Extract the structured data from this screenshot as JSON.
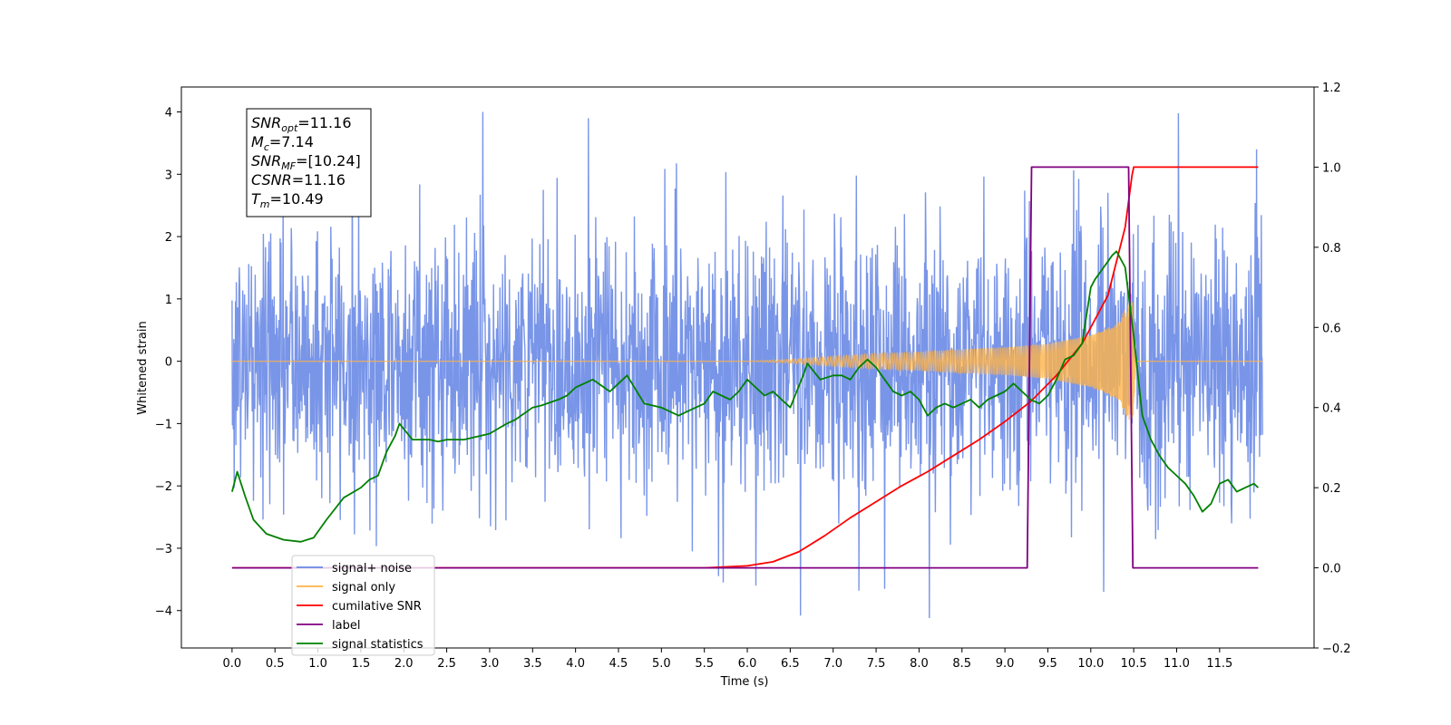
{
  "chart_data": {
    "type": "line",
    "xlabel": "Time (s)",
    "ylabel": "Whitened strain",
    "xlim": [
      -0.59,
      12.6
    ],
    "ylim": [
      -4.6,
      4.4
    ],
    "y2lim": [
      -0.2,
      1.2
    ],
    "x_ticks": [
      0.0,
      0.5,
      1.0,
      1.5,
      2.0,
      2.5,
      3.0,
      3.5,
      4.0,
      4.5,
      5.0,
      5.5,
      6.0,
      6.5,
      7.0,
      7.5,
      8.0,
      8.5,
      9.0,
      9.5,
      10.0,
      10.5,
      11.0,
      11.5
    ],
    "x_tick_labels": [
      "0.0",
      "0.5",
      "1.0",
      "1.5",
      "2.0",
      "2.5",
      "3.0",
      "3.5",
      "4.0",
      "4.5",
      "5.0",
      "5.5",
      "6.0",
      "6.5",
      "7.0",
      "7.5",
      "8.0",
      "8.5",
      "9.0",
      "9.5",
      "10.0",
      "10.5",
      "11.0",
      "11.5"
    ],
    "y_ticks": [
      -4,
      -3,
      -2,
      -1,
      0,
      1,
      2,
      3,
      4
    ],
    "y_tick_labels": [
      "−4",
      "−3",
      "−2",
      "−1",
      "0",
      "1",
      "2",
      "3",
      "4"
    ],
    "y2_ticks": [
      -0.2,
      0.0,
      0.2,
      0.4,
      0.6,
      0.8,
      1.0,
      1.2
    ],
    "y2_tick_labels": [
      "−0.2",
      "0.0",
      "0.2",
      "0.4",
      "0.6",
      "0.8",
      "1.0",
      "1.2"
    ],
    "grid": false,
    "legend_position": "lower-left",
    "annotation": [
      {
        "sym": "SNR",
        "sub": "opt",
        "value": "=11.16"
      },
      {
        "sym": "M",
        "sub": "c",
        "value": "=7.14"
      },
      {
        "sym": "SNR",
        "sub": "MF",
        "value": "=[10.24]"
      },
      {
        "sym": "CSNR",
        "sub": "",
        "value": "=11.16"
      },
      {
        "sym": "T",
        "sub": "m",
        "value": "=10.49"
      }
    ],
    "series": [
      {
        "name": "signal+ noise",
        "color": "#6a89e6",
        "axis": "left",
        "x_range": [
          0.0,
          12.0
        ],
        "std": 1.05,
        "y_min": -4.1,
        "y_max": 4.0,
        "notable_peaks": [
          {
            "x": 2.92,
            "y": 4.0
          },
          {
            "x": 4.15,
            "y": 3.9
          },
          {
            "x": 11.02,
            "y": 3.98
          },
          {
            "x": 11.93,
            "y": 3.4
          },
          {
            "x": 6.62,
            "y": -4.08
          },
          {
            "x": 8.12,
            "y": -4.12
          },
          {
            "x": 10.15,
            "y": -3.7
          },
          {
            "x": 5.72,
            "y": -3.55
          },
          {
            "x": 6.1,
            "y": -3.6
          },
          {
            "x": 7.3,
            "y": -3.68
          },
          {
            "x": 7.6,
            "y": -3.65
          }
        ]
      },
      {
        "name": "signal only",
        "color": "#ffb347",
        "axis": "left",
        "x_range": [
          0.0,
          12.0
        ],
        "t_merger": 10.49,
        "envelope": [
          [
            0.0,
            0.0
          ],
          [
            6.0,
            0.0
          ],
          [
            6.5,
            0.03
          ],
          [
            7.0,
            0.08
          ],
          [
            7.5,
            0.12
          ],
          [
            8.0,
            0.15
          ],
          [
            8.5,
            0.19
          ],
          [
            9.0,
            0.22
          ],
          [
            9.5,
            0.28
          ],
          [
            10.0,
            0.42
          ],
          [
            10.3,
            0.6
          ],
          [
            10.45,
            0.95
          ],
          [
            10.49,
            0.95
          ],
          [
            10.53,
            0.0
          ],
          [
            12.0,
            0.0
          ]
        ]
      },
      {
        "name": "cumilative SNR",
        "color": "#ff0000",
        "axis": "right",
        "x": [
          0.0,
          5.5,
          6.0,
          6.3,
          6.6,
          6.9,
          7.2,
          7.5,
          7.8,
          8.1,
          8.4,
          8.7,
          9.0,
          9.3,
          9.6,
          9.9,
          10.2,
          10.4,
          10.48,
          10.5,
          11.95
        ],
        "values": [
          0.0,
          0.0,
          0.005,
          0.015,
          0.04,
          0.08,
          0.125,
          0.165,
          0.205,
          0.24,
          0.28,
          0.32,
          0.365,
          0.415,
          0.48,
          0.56,
          0.68,
          0.85,
          0.98,
          1.0,
          1.0
        ]
      },
      {
        "name": "label",
        "color": "#800080",
        "axis": "right",
        "x": [
          0.0,
          9.26,
          9.31,
          10.44,
          10.49,
          11.95
        ],
        "values": [
          0.0,
          0.0,
          1.0,
          1.0,
          0.0,
          0.0
        ]
      },
      {
        "name": "signal statistics",
        "color": "#008000",
        "axis": "right",
        "x": [
          0.0,
          0.06,
          0.15,
          0.25,
          0.4,
          0.6,
          0.8,
          0.95,
          1.1,
          1.3,
          1.5,
          1.6,
          1.7,
          1.8,
          1.9,
          1.95,
          2.1,
          2.3,
          2.4,
          2.5,
          2.7,
          2.9,
          3.0,
          3.2,
          3.3,
          3.5,
          3.6,
          3.8,
          3.9,
          4.0,
          4.1,
          4.2,
          4.4,
          4.5,
          4.6,
          4.8,
          5.0,
          5.2,
          5.4,
          5.5,
          5.6,
          5.8,
          5.9,
          6.0,
          6.2,
          6.3,
          6.4,
          6.5,
          6.65,
          6.7,
          6.85,
          7.0,
          7.1,
          7.2,
          7.3,
          7.35,
          7.4,
          7.5,
          7.6,
          7.7,
          7.8,
          7.9,
          8.0,
          8.1,
          8.2,
          8.3,
          8.4,
          8.5,
          8.6,
          8.7,
          8.8,
          8.9,
          9.0,
          9.1,
          9.2,
          9.3,
          9.4,
          9.5,
          9.6,
          9.7,
          9.8,
          9.9,
          10.0,
          10.05,
          10.15,
          10.25,
          10.3,
          10.4,
          10.5,
          10.6,
          10.7,
          10.8,
          10.9,
          11.0,
          11.1,
          11.2,
          11.3,
          11.4,
          11.5,
          11.6,
          11.7,
          11.8,
          11.9,
          11.95
        ],
        "values": [
          0.19,
          0.24,
          0.18,
          0.12,
          0.085,
          0.07,
          0.065,
          0.075,
          0.12,
          0.175,
          0.2,
          0.22,
          0.23,
          0.29,
          0.33,
          0.36,
          0.32,
          0.32,
          0.315,
          0.32,
          0.32,
          0.33,
          0.335,
          0.36,
          0.37,
          0.4,
          0.405,
          0.42,
          0.43,
          0.45,
          0.46,
          0.47,
          0.44,
          0.46,
          0.48,
          0.41,
          0.4,
          0.38,
          0.4,
          0.41,
          0.44,
          0.42,
          0.44,
          0.47,
          0.43,
          0.44,
          0.42,
          0.4,
          0.48,
          0.51,
          0.47,
          0.48,
          0.48,
          0.47,
          0.5,
          0.51,
          0.52,
          0.5,
          0.47,
          0.44,
          0.43,
          0.44,
          0.42,
          0.38,
          0.4,
          0.41,
          0.4,
          0.41,
          0.42,
          0.4,
          0.42,
          0.43,
          0.44,
          0.46,
          0.44,
          0.42,
          0.41,
          0.43,
          0.47,
          0.52,
          0.53,
          0.56,
          0.7,
          0.72,
          0.75,
          0.78,
          0.79,
          0.75,
          0.58,
          0.38,
          0.32,
          0.28,
          0.25,
          0.23,
          0.21,
          0.18,
          0.14,
          0.16,
          0.21,
          0.22,
          0.19,
          0.2,
          0.21,
          0.2
        ]
      }
    ]
  }
}
